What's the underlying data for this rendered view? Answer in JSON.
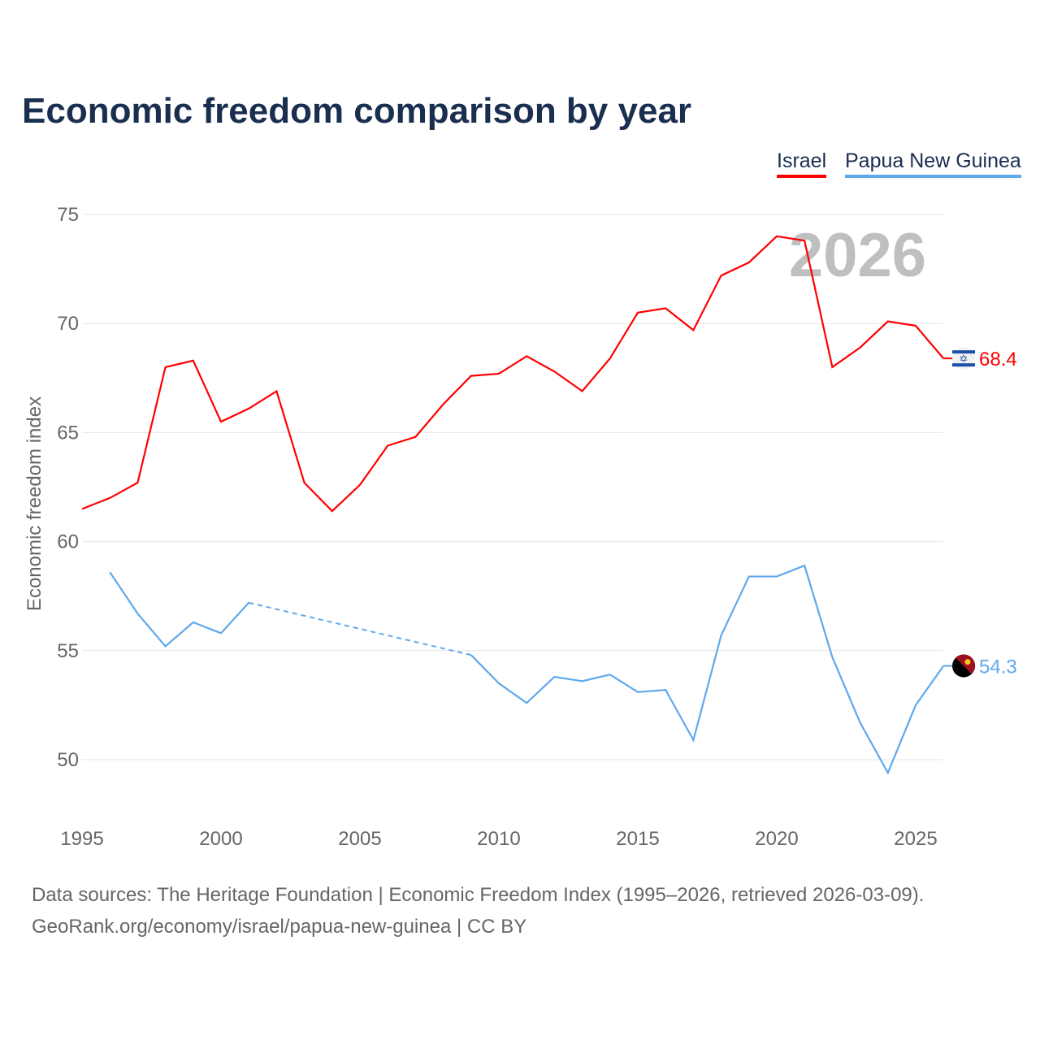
{
  "title": "Economic freedom comparison by year",
  "footer": {
    "line1": "Data sources: The Heritage Foundation | Economic Freedom Index (1995–2026, retrieved 2026-03-09).",
    "line2": "GeoRank.org/economy/israel/papua-new-guinea | CC BY"
  },
  "chart_data": {
    "type": "line",
    "title": "Economic freedom comparison by year",
    "ylabel": "Economic freedom index",
    "xlabel": "",
    "year_label": "2026",
    "xlim": [
      1995,
      2026
    ],
    "ylim": [
      47.5,
      76
    ],
    "x_ticks": [
      1995,
      2000,
      2005,
      2010,
      2015,
      2020,
      2025
    ],
    "y_ticks": [
      50,
      55,
      60,
      65,
      70,
      75
    ],
    "grid": true,
    "legend_position": "top-right",
    "series": [
      {
        "name": "Israel",
        "color": "#ff0000",
        "end_label": "68.4",
        "flag": "israel-flag",
        "x": [
          1995,
          1996,
          1997,
          1998,
          1999,
          2000,
          2001,
          2002,
          2003,
          2004,
          2005,
          2006,
          2007,
          2008,
          2009,
          2010,
          2011,
          2012,
          2013,
          2014,
          2015,
          2016,
          2017,
          2018,
          2019,
          2020,
          2021,
          2022,
          2023,
          2024,
          2025,
          2026
        ],
        "values": [
          61.5,
          62.0,
          62.7,
          68.0,
          68.3,
          65.5,
          66.1,
          66.9,
          62.7,
          61.4,
          62.6,
          64.4,
          64.8,
          66.3,
          67.6,
          67.7,
          68.5,
          67.8,
          66.9,
          68.4,
          70.5,
          70.7,
          69.7,
          72.2,
          72.8,
          74.0,
          73.8,
          68.0,
          68.9,
          70.1,
          69.9,
          68.4
        ]
      },
      {
        "name": "Papua New Guinea",
        "color": "#5fa8ec",
        "end_label": "54.3",
        "flag": "papua-new-guinea-flag",
        "x": [
          1996,
          1997,
          1998,
          1999,
          2000,
          2001,
          2002,
          2003,
          2004,
          2005,
          2006,
          2007,
          2008,
          2009,
          2010,
          2011,
          2012,
          2013,
          2014,
          2015,
          2016,
          2017,
          2018,
          2019,
          2020,
          2021,
          2022,
          2023,
          2024,
          2025,
          2026
        ],
        "values": [
          58.6,
          56.7,
          55.2,
          56.3,
          55.8,
          57.2,
          null,
          null,
          null,
          null,
          null,
          null,
          null,
          54.8,
          53.5,
          52.6,
          53.8,
          53.6,
          53.9,
          53.1,
          53.2,
          50.9,
          55.7,
          58.4,
          58.4,
          58.9,
          54.7,
          51.7,
          49.4,
          52.5,
          54.3
        ]
      }
    ]
  }
}
